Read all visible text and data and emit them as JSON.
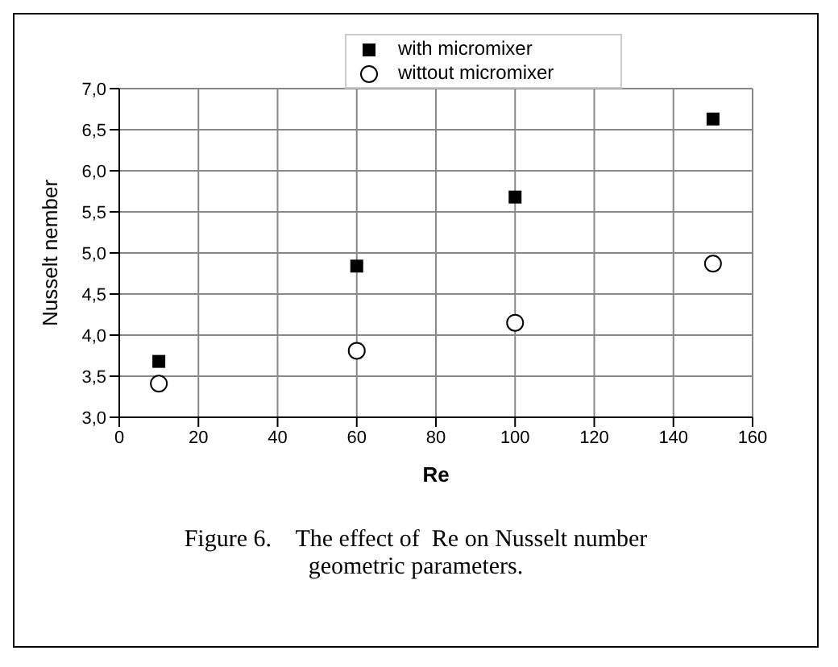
{
  "chart_data": {
    "type": "scatter",
    "xlabel": "Re",
    "ylabel": "Nusselt nember",
    "x": [
      10,
      60,
      100,
      150
    ],
    "series": [
      {
        "name": "with micromixer",
        "color": "#000000",
        "marker": "square",
        "values": [
          3.68,
          4.84,
          5.68,
          6.63
        ]
      },
      {
        "name": "wittout micromixer",
        "color": "#000000",
        "marker": "circle",
        "values": [
          3.41,
          3.81,
          4.15,
          4.87
        ]
      }
    ],
    "xlim": [
      0,
      160
    ],
    "xticks": [
      0,
      20,
      40,
      60,
      80,
      100,
      120,
      140,
      160
    ],
    "ylim": [
      3,
      7
    ],
    "yticks": [
      {
        "value": 3,
        "label": "3,0"
      },
      {
        "value": 3.5,
        "label": "3,5"
      },
      {
        "value": 4,
        "label": "4,0"
      },
      {
        "value": 4.5,
        "label": "4,5"
      },
      {
        "value": 5,
        "label": "5,0"
      },
      {
        "value": 5.5,
        "label": "5,5"
      },
      {
        "value": 6,
        "label": "6,0"
      },
      {
        "value": 6.5,
        "label": "6,5"
      },
      {
        "value": 7,
        "label": "7,0"
      }
    ],
    "grid": true,
    "legend": "top",
    "annotations": [
      "Figure 6.    The effect of  Re on Nusselt number geometric parameters."
    ]
  }
}
